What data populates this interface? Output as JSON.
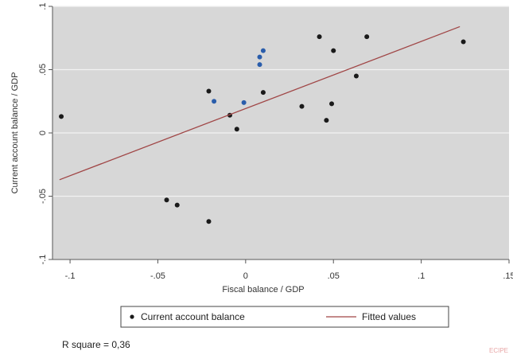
{
  "chart_data": {
    "type": "scatter",
    "xlabel": "Fiscal balance / GDP",
    "ylabel": "Current account balance / GDP",
    "xlim": [
      -0.11,
      0.15
    ],
    "ylim": [
      -0.1,
      0.1
    ],
    "x_ticks": [
      {
        "value": -0.1,
        "label": "-.1"
      },
      {
        "value": -0.05,
        "label": "-.05"
      },
      {
        "value": 0,
        "label": "0"
      },
      {
        "value": 0.05,
        "label": ".05"
      },
      {
        "value": 0.1,
        "label": ".1"
      },
      {
        "value": 0.15,
        "label": ".15"
      }
    ],
    "y_ticks": [
      {
        "value": -0.1,
        "label": "-.1"
      },
      {
        "value": -0.05,
        "label": "-.05"
      },
      {
        "value": 0,
        "label": "0"
      },
      {
        "value": 0.05,
        "label": ".05"
      },
      {
        "value": 0.1,
        "label": ".1"
      }
    ],
    "grid": "horizontal",
    "legend_position": "bottom",
    "series": [
      {
        "name": "Current account balance",
        "kind": "scatter",
        "color": "#1a1a1a",
        "points": [
          {
            "x": -0.105,
            "y": 0.013,
            "color": "#1a1a1a"
          },
          {
            "x": -0.045,
            "y": -0.053,
            "color": "#1a1a1a"
          },
          {
            "x": -0.039,
            "y": -0.057,
            "color": "#1a1a1a"
          },
          {
            "x": -0.021,
            "y": -0.07,
            "color": "#1a1a1a"
          },
          {
            "x": -0.021,
            "y": 0.033,
            "color": "#1a1a1a"
          },
          {
            "x": -0.018,
            "y": 0.025,
            "color": "#2a5dab"
          },
          {
            "x": -0.009,
            "y": 0.014,
            "color": "#1a1a1a"
          },
          {
            "x": -0.005,
            "y": 0.003,
            "color": "#1a1a1a"
          },
          {
            "x": -0.001,
            "y": 0.024,
            "color": "#2a5dab"
          },
          {
            "x": 0.008,
            "y": 0.054,
            "color": "#2a5dab"
          },
          {
            "x": 0.008,
            "y": 0.06,
            "color": "#2a5dab"
          },
          {
            "x": 0.01,
            "y": 0.065,
            "color": "#2a5dab"
          },
          {
            "x": 0.01,
            "y": 0.032,
            "color": "#1a1a1a"
          },
          {
            "x": 0.032,
            "y": 0.021,
            "color": "#1a1a1a"
          },
          {
            "x": 0.042,
            "y": 0.076,
            "color": "#1a1a1a"
          },
          {
            "x": 0.046,
            "y": 0.01,
            "color": "#1a1a1a"
          },
          {
            "x": 0.049,
            "y": 0.023,
            "color": "#1a1a1a"
          },
          {
            "x": 0.05,
            "y": 0.065,
            "color": "#1a1a1a"
          },
          {
            "x": 0.063,
            "y": 0.045,
            "color": "#1a1a1a"
          },
          {
            "x": 0.069,
            "y": 0.076,
            "color": "#1a1a1a"
          },
          {
            "x": 0.124,
            "y": 0.072,
            "color": "#1a1a1a"
          }
        ]
      },
      {
        "name": "Fitted values",
        "kind": "line",
        "color": "#a04646",
        "points": [
          {
            "x": -0.106,
            "y": -0.037
          },
          {
            "x": 0.122,
            "y": 0.084
          }
        ]
      }
    ],
    "annotation": "R square = 0,36"
  },
  "colors": {
    "plot_background": "#d7d7d7",
    "gridline": "#f2f2f2",
    "axis_line": "#555555",
    "page_background": "#ffffff",
    "watermark": "#e8a6a6"
  },
  "watermark_text": "ECIPE"
}
